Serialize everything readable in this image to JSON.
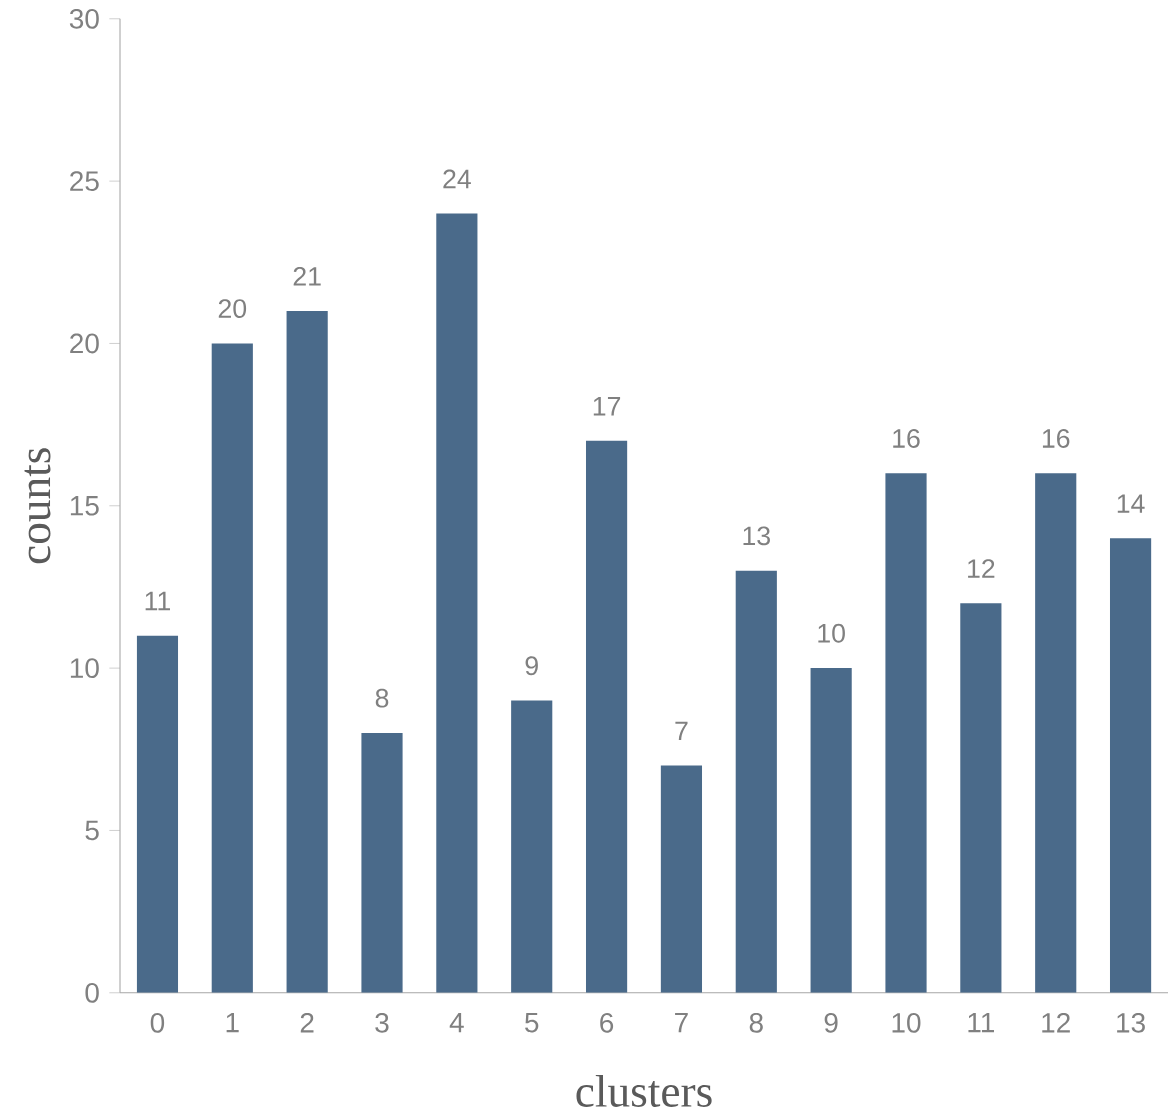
{
  "chart_data": {
    "type": "bar",
    "xlabel": "clusters",
    "ylabel": "counts",
    "categories": [
      "0",
      "1",
      "2",
      "3",
      "4",
      "5",
      "6",
      "7",
      "8",
      "9",
      "10",
      "11",
      "12",
      "13"
    ],
    "values": [
      11,
      20,
      21,
      8,
      24,
      9,
      17,
      7,
      13,
      10,
      16,
      12,
      16,
      14
    ],
    "color": "#4a6a8a",
    "ylim": [
      0,
      30
    ],
    "yticks": [
      0,
      5,
      10,
      15,
      20,
      25,
      30
    ],
    "data_labels": true
  }
}
